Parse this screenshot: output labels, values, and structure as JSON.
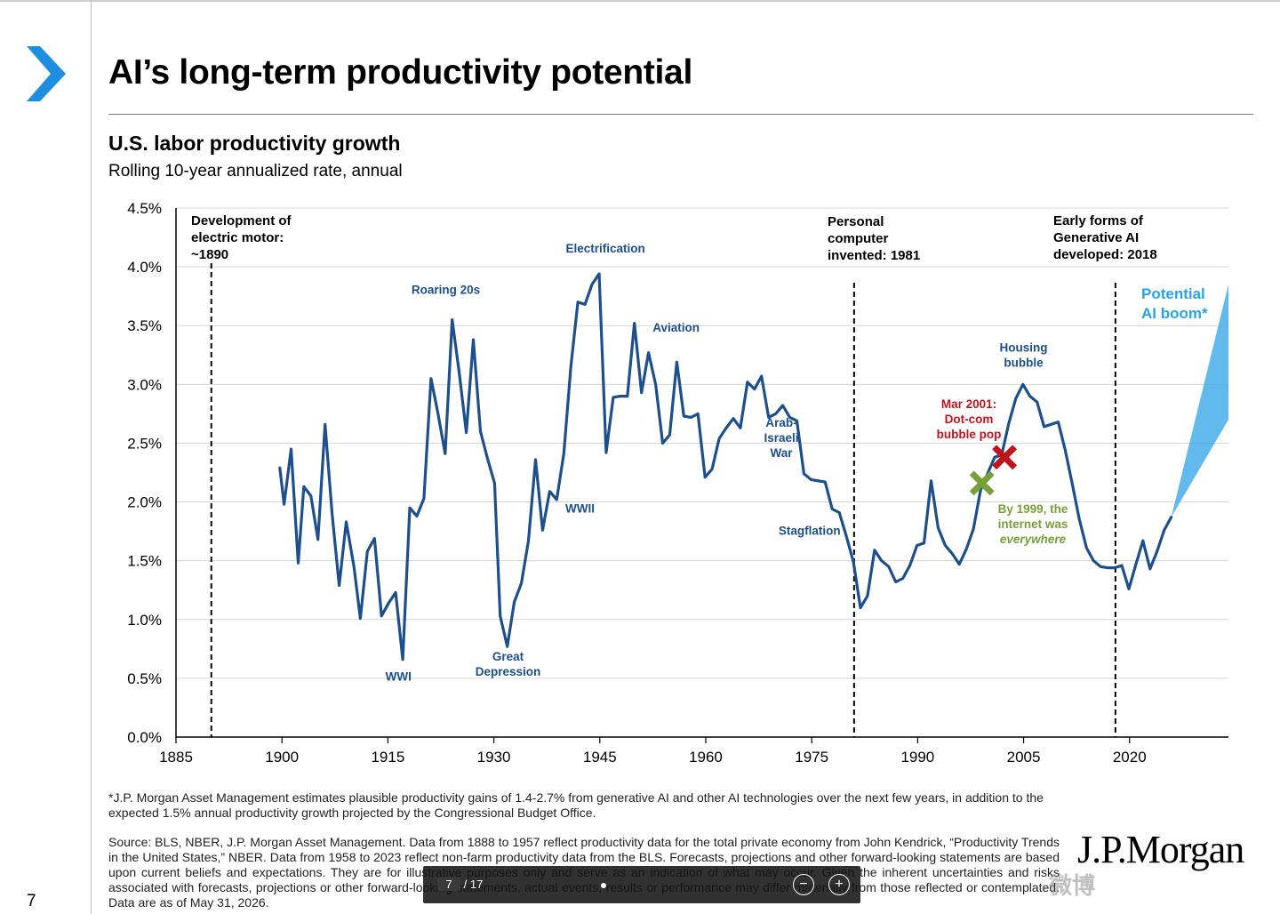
{
  "page": {
    "title": "AI’s long-term productivity potential",
    "chart_title": "U.S. labor productivity growth",
    "chart_subtitle": "Rolling 10-year annualized rate, annual",
    "footnote": "*J.P. Morgan Asset Management estimates plausible productivity gains of 1.4-2.7% from generative AI and other AI technologies over the next few years, in addition to the expected 1.5% annual productivity growth projected by the Congressional Budget Office.",
    "source": "Source: BLS, NBER, J.P. Morgan Asset Management. Data from 1888 to 1957 reflect productivity data for the total private economy from John Kendrick, “Productivity Trends in the United States,” NBER. Data from 1958 to 2023 reflect non-farm productivity data from the BLS. Forecasts, projections and other forward-looking statements are based upon current beliefs and expectations. They are for illustrative purposes only and serve as an indication of what may occur. Given the inherent uncertainties and risks associated with forecasts, projections or other forward-looking statements, actual events, results or performance may differ materially from those reflected or contemplated. Data are as of May 31, 2026.",
    "logo": "J.P.Morgan",
    "page_number": "7"
  },
  "viewer": {
    "current_page": "7",
    "separator": "/",
    "total_pages": "17",
    "zoom_out": "−",
    "zoom_in": "+"
  },
  "watermark": "微博",
  "colors": {
    "line": "#1d4f8c",
    "annotation": "#1d4f8c",
    "dotcom": "#c0141c",
    "internet": "#77a03b",
    "ai_boom": "#45aee8",
    "chevron": "#1e8fe0"
  },
  "chart_data": {
    "type": "line",
    "title": "U.S. labor productivity growth",
    "subtitle": "Rolling 10-year annualized rate, annual",
    "xlim": [
      1885,
      2034
    ],
    "ylim": [
      0,
      4.5
    ],
    "x_ticks": [
      1885,
      1900,
      1915,
      1930,
      1945,
      1960,
      1975,
      1990,
      2005,
      2020
    ],
    "y_ticks": [
      0,
      0.5,
      1.0,
      1.5,
      2.0,
      2.5,
      3.0,
      3.5,
      4.0,
      4.5
    ],
    "y_tick_labels": [
      "0.0%",
      "0.5%",
      "1.0%",
      "1.5%",
      "2.0%",
      "2.5%",
      "3.0%",
      "3.5%",
      "4.0%",
      "4.5%"
    ],
    "grid": true,
    "series": [
      {
        "points": [
          [
            1899.7,
            2.29
          ],
          [
            1900.3,
            1.98
          ],
          [
            1901.3,
            2.45
          ],
          [
            1902.3,
            1.48
          ],
          [
            1903.1,
            2.13
          ],
          [
            1904.1,
            2.05
          ],
          [
            1905.1,
            1.68
          ],
          [
            1906.1,
            2.66
          ],
          [
            1907.1,
            1.9
          ],
          [
            1908.1,
            1.29
          ],
          [
            1909.1,
            1.83
          ],
          [
            1910.2,
            1.45
          ],
          [
            1911.1,
            1.01
          ],
          [
            1912.1,
            1.58
          ],
          [
            1913.1,
            1.69
          ],
          [
            1914.1,
            1.03
          ],
          [
            1915.1,
            1.14
          ],
          [
            1916.1,
            1.23
          ],
          [
            1917.1,
            0.66
          ],
          [
            1918.1,
            1.95
          ],
          [
            1919.1,
            1.88
          ],
          [
            1920.1,
            2.03
          ],
          [
            1921.1,
            3.05
          ],
          [
            1922.1,
            2.75
          ],
          [
            1923.1,
            2.41
          ],
          [
            1924.1,
            3.55
          ],
          [
            1925.1,
            3.1
          ],
          [
            1926.1,
            2.59
          ],
          [
            1927.1,
            3.38
          ],
          [
            1928.1,
            2.6
          ],
          [
            1929.1,
            2.37
          ],
          [
            1930.1,
            2.16
          ],
          [
            1930.9,
            1.03
          ],
          [
            1931.9,
            0.77
          ],
          [
            1932.9,
            1.15
          ],
          [
            1933.9,
            1.31
          ],
          [
            1934.9,
            1.67
          ],
          [
            1935.9,
            2.36
          ],
          [
            1936.9,
            1.76
          ],
          [
            1937.9,
            2.09
          ],
          [
            1938.9,
            2.02
          ],
          [
            1939.9,
            2.41
          ],
          [
            1940.9,
            3.15
          ],
          [
            1941.9,
            3.7
          ],
          [
            1942.9,
            3.68
          ],
          [
            1943.9,
            3.85
          ],
          [
            1944.9,
            3.94
          ],
          [
            1945.9,
            2.42
          ],
          [
            1946.9,
            2.89
          ],
          [
            1947.9,
            2.9
          ],
          [
            1948.9,
            2.9
          ],
          [
            1949.9,
            3.52
          ],
          [
            1950.9,
            2.93
          ],
          [
            1951.9,
            3.27
          ],
          [
            1952.9,
            3.0
          ],
          [
            1953.9,
            2.5
          ],
          [
            1954.9,
            2.57
          ],
          [
            1955.9,
            3.19
          ],
          [
            1956.9,
            2.73
          ],
          [
            1957.9,
            2.72
          ],
          [
            1958.9,
            2.75
          ],
          [
            1959.9,
            2.21
          ],
          [
            1960.9,
            2.28
          ],
          [
            1961.9,
            2.54
          ],
          [
            1962.9,
            2.63
          ],
          [
            1963.9,
            2.71
          ],
          [
            1964.9,
            2.63
          ],
          [
            1965.9,
            3.02
          ],
          [
            1966.9,
            2.96
          ],
          [
            1967.9,
            3.07
          ],
          [
            1968.9,
            2.72
          ],
          [
            1969.9,
            2.75
          ],
          [
            1970.9,
            2.82
          ],
          [
            1971.9,
            2.72
          ],
          [
            1972.9,
            2.69
          ],
          [
            1973.9,
            2.24
          ],
          [
            1974.9,
            2.19
          ],
          [
            1975.9,
            2.18
          ],
          [
            1976.9,
            2.17
          ],
          [
            1977.9,
            1.94
          ],
          [
            1978.9,
            1.91
          ],
          [
            1979.9,
            1.71
          ],
          [
            1980.9,
            1.49
          ],
          [
            1981.9,
            1.1
          ],
          [
            1982.9,
            1.2
          ],
          [
            1983.9,
            1.59
          ],
          [
            1984.9,
            1.5
          ],
          [
            1985.9,
            1.45
          ],
          [
            1986.9,
            1.32
          ],
          [
            1987.9,
            1.35
          ],
          [
            1988.9,
            1.46
          ],
          [
            1989.9,
            1.63
          ],
          [
            1990.9,
            1.65
          ],
          [
            1991.9,
            2.18
          ],
          [
            1992.9,
            1.78
          ],
          [
            1993.9,
            1.63
          ],
          [
            1994.9,
            1.56
          ],
          [
            1995.9,
            1.47
          ],
          [
            1996.9,
            1.6
          ],
          [
            1997.9,
            1.77
          ],
          [
            1998.9,
            2.1
          ],
          [
            1999.9,
            2.24
          ],
          [
            2000.9,
            2.38
          ],
          [
            2001.9,
            2.4
          ],
          [
            2002.9,
            2.67
          ],
          [
            2003.9,
            2.88
          ],
          [
            2004.9,
            3.0
          ],
          [
            2005.9,
            2.9
          ],
          [
            2006.9,
            2.85
          ],
          [
            2007.9,
            2.64
          ],
          [
            2008.9,
            2.66
          ],
          [
            2009.9,
            2.68
          ],
          [
            2010.9,
            2.44
          ],
          [
            2011.9,
            2.15
          ],
          [
            2012.9,
            1.85
          ],
          [
            2013.9,
            1.61
          ],
          [
            2014.9,
            1.5
          ],
          [
            2015.9,
            1.45
          ],
          [
            2016.9,
            1.44
          ],
          [
            2017.9,
            1.44
          ],
          [
            2018.9,
            1.46
          ],
          [
            2019.9,
            1.26
          ],
          [
            2020.9,
            1.47
          ],
          [
            2021.9,
            1.67
          ],
          [
            2022.9,
            1.43
          ],
          [
            2023.9,
            1.58
          ],
          [
            2024.9,
            1.76
          ],
          [
            2025.9,
            1.87
          ]
        ]
      }
    ],
    "projection": {
      "start": [
        2025.9,
        1.87
      ],
      "end_year": 2034,
      "low": 2.7,
      "high": 3.85
    },
    "vlines": [
      {
        "x": 1890,
        "label": [
          "Development of",
          "electric motor:",
          "~1890"
        ]
      },
      {
        "x": 1981,
        "label": [
          "Personal",
          "computer",
          "invented: 1981"
        ]
      },
      {
        "x": 2018,
        "label": [
          "Early forms of",
          "Generative AI",
          "developed: 2018"
        ]
      }
    ],
    "annotations": [
      {
        "lines": [
          "Roaring 20s"
        ],
        "x": 1923.2,
        "y": 3.77
      },
      {
        "lines": [
          "Electrification"
        ],
        "x": 1945.8,
        "y": 4.12
      },
      {
        "lines": [
          "Aviation"
        ],
        "x": 1955.8,
        "y": 3.45
      },
      {
        "lines": [
          "WWI"
        ],
        "x": 1916.5,
        "y": 0.48
      },
      {
        "lines": [
          "Great",
          "Depression"
        ],
        "x": 1932.0,
        "y": 0.65
      },
      {
        "lines": [
          "WWII"
        ],
        "x": 1942.2,
        "y": 1.91
      },
      {
        "lines": [
          "Arab-",
          "Israeli",
          "War"
        ],
        "x": 1970.7,
        "y": 2.64
      },
      {
        "lines": [
          "Stagflation"
        ],
        "x": 1974.7,
        "y": 1.72
      },
      {
        "lines": [
          "Housing",
          "bubble"
        ],
        "x": 2005.0,
        "y": 3.28
      }
    ],
    "ai_label": [
      "Potential",
      "AI boom*"
    ],
    "markers": [
      {
        "type": "x",
        "x": 2002.3,
        "y": 2.38,
        "color_key": "dotcom",
        "lines": [
          "Mar 2001:",
          "Dot-com",
          "bubble pop"
        ]
      },
      {
        "type": "x",
        "x": 1999.1,
        "y": 2.16,
        "color_key": "internet",
        "lines": [
          "By 1999, the",
          "internet was",
          "everywhere"
        ]
      }
    ]
  }
}
